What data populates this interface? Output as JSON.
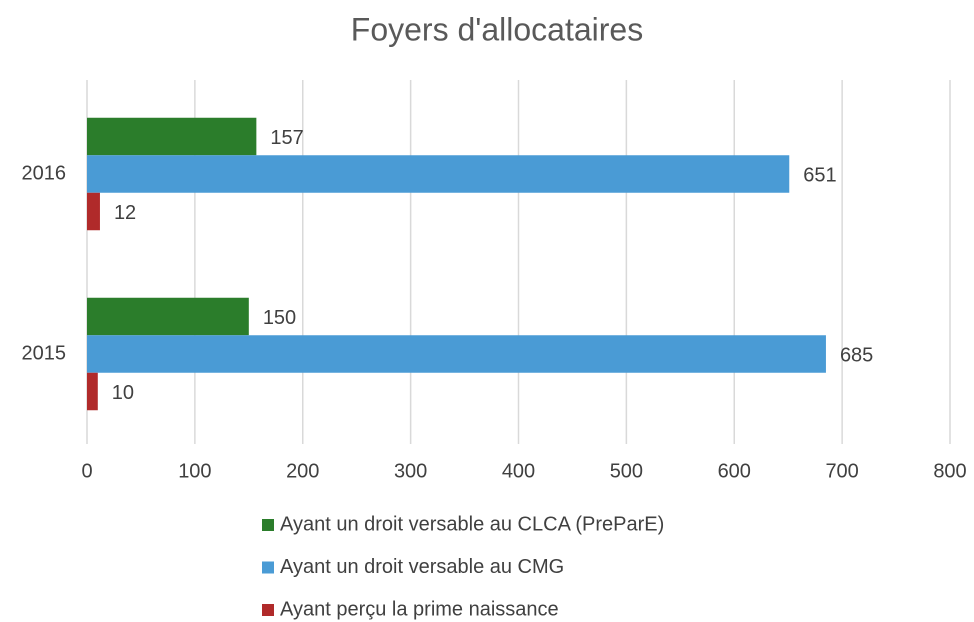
{
  "chart_data": {
    "type": "hbar",
    "title": "Foyers d'allocataires",
    "categories": [
      "2016",
      "2015"
    ],
    "series": [
      {
        "name": "Ayant un droit versable au CLCA (PreParE)",
        "color": "#2b7d2b",
        "values": [
          157,
          150
        ]
      },
      {
        "name": "Ayant un droit versable au CMG",
        "color": "#4a9bd5",
        "values": [
          651,
          685
        ]
      },
      {
        "name": "Ayant perçu la prime naissance",
        "color": "#b02a2a",
        "values": [
          12,
          10
        ]
      }
    ],
    "xlim": [
      0,
      800
    ],
    "xticks": [
      0,
      100,
      200,
      300,
      400,
      500,
      600,
      700,
      800
    ],
    "grid": true
  }
}
